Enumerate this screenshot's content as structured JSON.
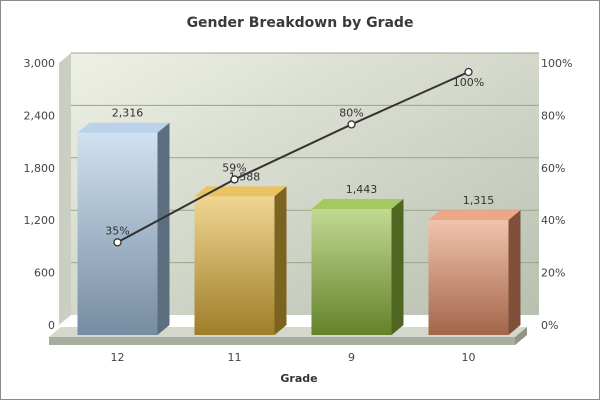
{
  "chart_data": {
    "type": "bar",
    "title": "Gender Breakdown by Grade",
    "xlabel": "Grade",
    "ylabel": "",
    "categories": [
      "12",
      "11",
      "9",
      "10"
    ],
    "series": [
      {
        "kind": "bar",
        "values": [
          2316,
          1588,
          1443,
          1315
        ],
        "value_labels": [
          "2,316",
          "1,588",
          "1,443",
          "1,315"
        ],
        "colors": [
          "#a9c8e6",
          "#e3b43a",
          "#8fba3a",
          "#e8916a"
        ]
      },
      {
        "kind": "line",
        "axis": "right",
        "values": [
          35,
          59,
          80,
          100
        ],
        "value_labels": [
          "35%",
          "59%",
          "80%",
          "100%"
        ],
        "color": "#333333"
      }
    ],
    "ylim": [
      0,
      3000
    ],
    "y_ticks": [
      "0",
      "600",
      "1,200",
      "1,800",
      "2,400",
      "3,000"
    ],
    "y2lim": [
      0,
      100
    ],
    "y2_ticks": [
      "0%",
      "20%",
      "40%",
      "60%",
      "80%",
      "100%"
    ],
    "grid": true,
    "style": "3d",
    "legend": "none"
  }
}
